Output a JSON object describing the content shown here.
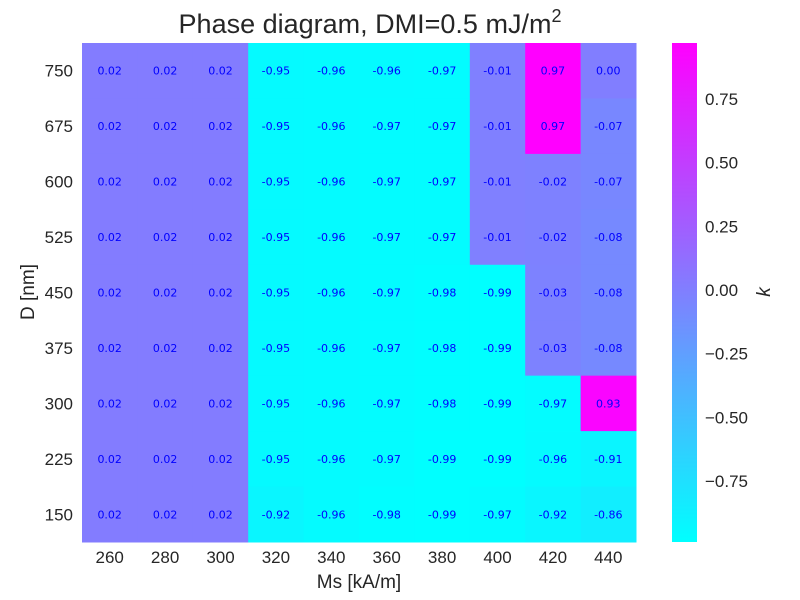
{
  "chart_data": {
    "type": "heatmap",
    "title": "Phase diagram, DMI=0.5 mJ/m",
    "title_superscript": "2",
    "xlabel": "Ms [kA/m]",
    "ylabel": "D [nm]",
    "colorbar_label": "k",
    "colormap": "cool",
    "colormap_endpoints": [
      "#00ffff",
      "#ff00ff"
    ],
    "annotation_color": "#0000ff",
    "vmin": -0.99,
    "vmax": 0.97,
    "x": [
      "260",
      "280",
      "300",
      "320",
      "340",
      "360",
      "380",
      "400",
      "420",
      "440"
    ],
    "y": [
      "750",
      "675",
      "600",
      "525",
      "450",
      "375",
      "300",
      "225",
      "150"
    ],
    "values": [
      [
        0.02,
        0.02,
        0.02,
        -0.95,
        -0.96,
        -0.96,
        -0.97,
        -0.01,
        0.97,
        0.0
      ],
      [
        0.02,
        0.02,
        0.02,
        -0.95,
        -0.96,
        -0.97,
        -0.97,
        -0.01,
        0.97,
        -0.07
      ],
      [
        0.02,
        0.02,
        0.02,
        -0.95,
        -0.96,
        -0.97,
        -0.97,
        -0.01,
        -0.02,
        -0.07
      ],
      [
        0.02,
        0.02,
        0.02,
        -0.95,
        -0.96,
        -0.97,
        -0.97,
        -0.01,
        -0.02,
        -0.08
      ],
      [
        0.02,
        0.02,
        0.02,
        -0.95,
        -0.96,
        -0.97,
        -0.98,
        -0.99,
        -0.03,
        -0.08
      ],
      [
        0.02,
        0.02,
        0.02,
        -0.95,
        -0.96,
        -0.97,
        -0.98,
        -0.99,
        -0.03,
        -0.08
      ],
      [
        0.02,
        0.02,
        0.02,
        -0.95,
        -0.96,
        -0.97,
        -0.98,
        -0.99,
        -0.97,
        0.93
      ],
      [
        0.02,
        0.02,
        0.02,
        -0.95,
        -0.96,
        -0.97,
        -0.99,
        -0.99,
        -0.96,
        -0.91
      ],
      [
        0.02,
        0.02,
        0.02,
        -0.92,
        -0.96,
        -0.98,
        -0.99,
        -0.97,
        -0.92,
        -0.86
      ]
    ],
    "colorbar_ticks": [
      0.75,
      0.5,
      0.25,
      0.0,
      -0.25,
      -0.5,
      -0.75
    ],
    "colorbar_tick_labels": [
      "0.75",
      "0.50",
      "0.25",
      "0.00",
      "−0.25",
      "−0.50",
      "−0.75"
    ],
    "grid": false
  }
}
